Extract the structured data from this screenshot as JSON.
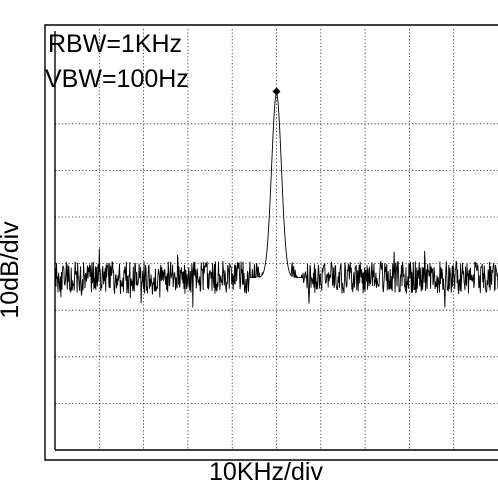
{
  "chart_data": {
    "type": "line",
    "title": "",
    "xlabel": "10KHz/div",
    "ylabel": "10dB/div",
    "grid": true,
    "x_divisions": 10,
    "y_divisions": 8,
    "annotations": [
      "RBW=1KHz",
      "VBW=100Hz"
    ],
    "x_unit": "div",
    "y_unit": "div",
    "xlim": [
      0,
      10
    ],
    "ylim": [
      0,
      8
    ],
    "noise_floor": 3.7,
    "noise_amplitude": 0.35,
    "series": [
      {
        "values_x": [
          0,
          4.75,
          5.0,
          5.25,
          5.5,
          10
        ],
        "values_y": [
          3.7,
          3.9,
          7.65,
          4.0,
          3.7,
          3.7
        ]
      }
    ],
    "peak": {
      "x": 5.0,
      "y": 7.65
    }
  }
}
